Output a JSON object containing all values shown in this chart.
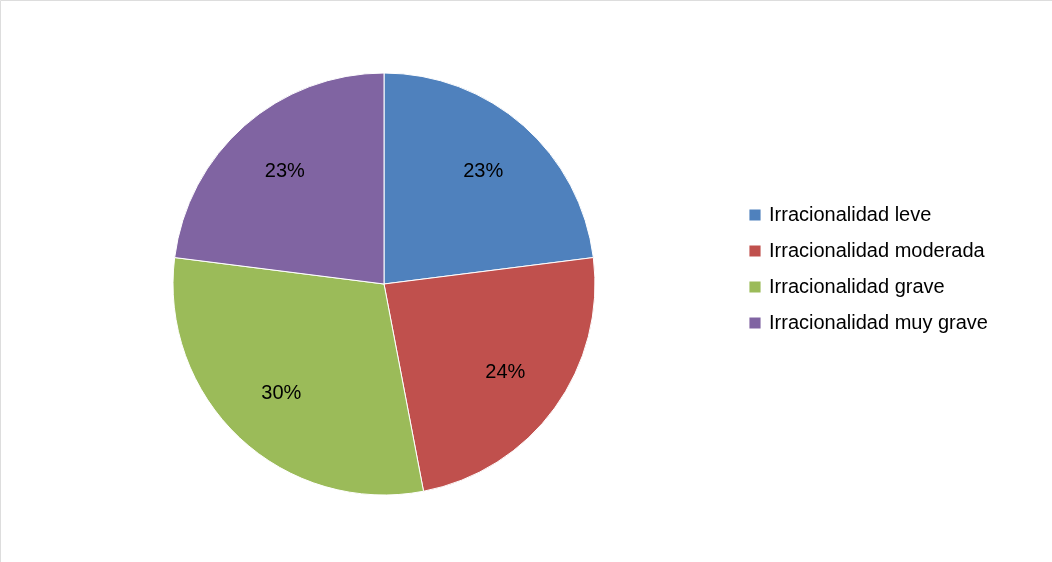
{
  "chart_data": {
    "type": "pie",
    "categories": [
      "Irracionalidad leve",
      "Irracionalidad moderada",
      "Irracionalidad grave",
      "Irracionalidad muy grave"
    ],
    "values": [
      23,
      24,
      30,
      23
    ],
    "colors": [
      "#4f81bd",
      "#c0504d",
      "#9bbb59",
      "#8064a2"
    ],
    "value_labels": [
      "23%",
      "24%",
      "30%",
      "23%"
    ],
    "legend": "right"
  }
}
